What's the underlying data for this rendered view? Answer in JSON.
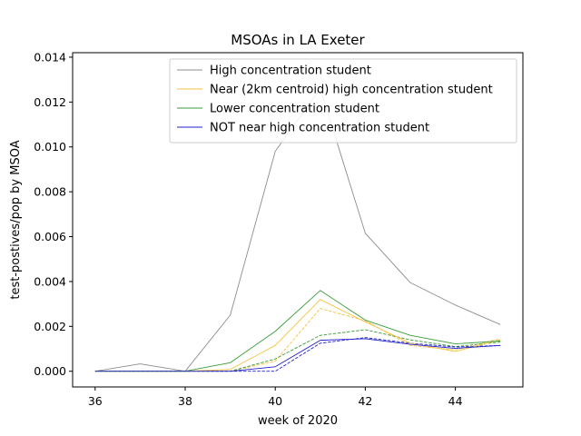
{
  "chart_data": {
    "type": "line",
    "title": "MSOAs in LA Exeter",
    "xlabel": "week of 2020",
    "ylabel": "test-postives/pop by MSOA",
    "xlim": [
      35.5,
      45.5
    ],
    "ylim": [
      -0.0007,
      0.0142
    ],
    "xticks": [
      36,
      38,
      40,
      42,
      44
    ],
    "yticks": [
      0.0,
      0.002,
      0.004,
      0.006,
      0.008,
      0.01,
      0.012,
      0.014
    ],
    "ytick_labels": [
      "0.000",
      "0.002",
      "0.004",
      "0.006",
      "0.008",
      "0.010",
      "0.012",
      "0.014"
    ],
    "legend_position": "top-right",
    "grid": false,
    "x": [
      36,
      37,
      38,
      39,
      40,
      41,
      42,
      43,
      44,
      45
    ],
    "series": [
      {
        "name": "High concentration student",
        "color": "#8c8c8c",
        "style": "solid",
        "values": [
          0.0,
          0.00033,
          0.0,
          0.0025,
          0.0098,
          0.0126,
          0.00615,
          0.00395,
          0.00295,
          0.00208
        ]
      },
      {
        "name": "Near (2km centroid) high concentration student",
        "color": "#f5c242",
        "style": "solid",
        "values": [
          0.0,
          0.0,
          0.0,
          8e-05,
          0.00115,
          0.0032,
          0.0022,
          0.00125,
          0.00088,
          0.0014
        ]
      },
      {
        "name": "Lower concentration student",
        "color": "#3a9b3a",
        "style": "solid",
        "values": [
          0.0,
          0.0,
          0.0,
          0.00038,
          0.00178,
          0.0036,
          0.00228,
          0.0016,
          0.00122,
          0.00135
        ]
      },
      {
        "name": "NOT near high concentration student",
        "color": "#2222cc",
        "style": "solid",
        "values": [
          0.0,
          0.0,
          0.0,
          0.0,
          0.0002,
          0.00138,
          0.00145,
          0.0012,
          0.00102,
          0.00115
        ]
      },
      {
        "color": "#f5c242",
        "style": "dashed",
        "values": [
          0.0,
          0.0,
          0.0,
          0.0,
          0.00045,
          0.0028,
          0.00225,
          0.00115,
          0.00095,
          0.00145
        ]
      },
      {
        "color": "#3a9b3a",
        "style": "dashed",
        "values": [
          0.0,
          0.0,
          0.0,
          0.0,
          0.00055,
          0.0016,
          0.00185,
          0.0014,
          0.0011,
          0.0013
        ]
      },
      {
        "color": "#2222cc",
        "style": "dashed",
        "values": [
          0.0,
          0.0,
          0.0,
          0.0,
          0.0,
          0.00125,
          0.0015,
          0.00125,
          0.00108,
          0.00115
        ]
      }
    ]
  }
}
